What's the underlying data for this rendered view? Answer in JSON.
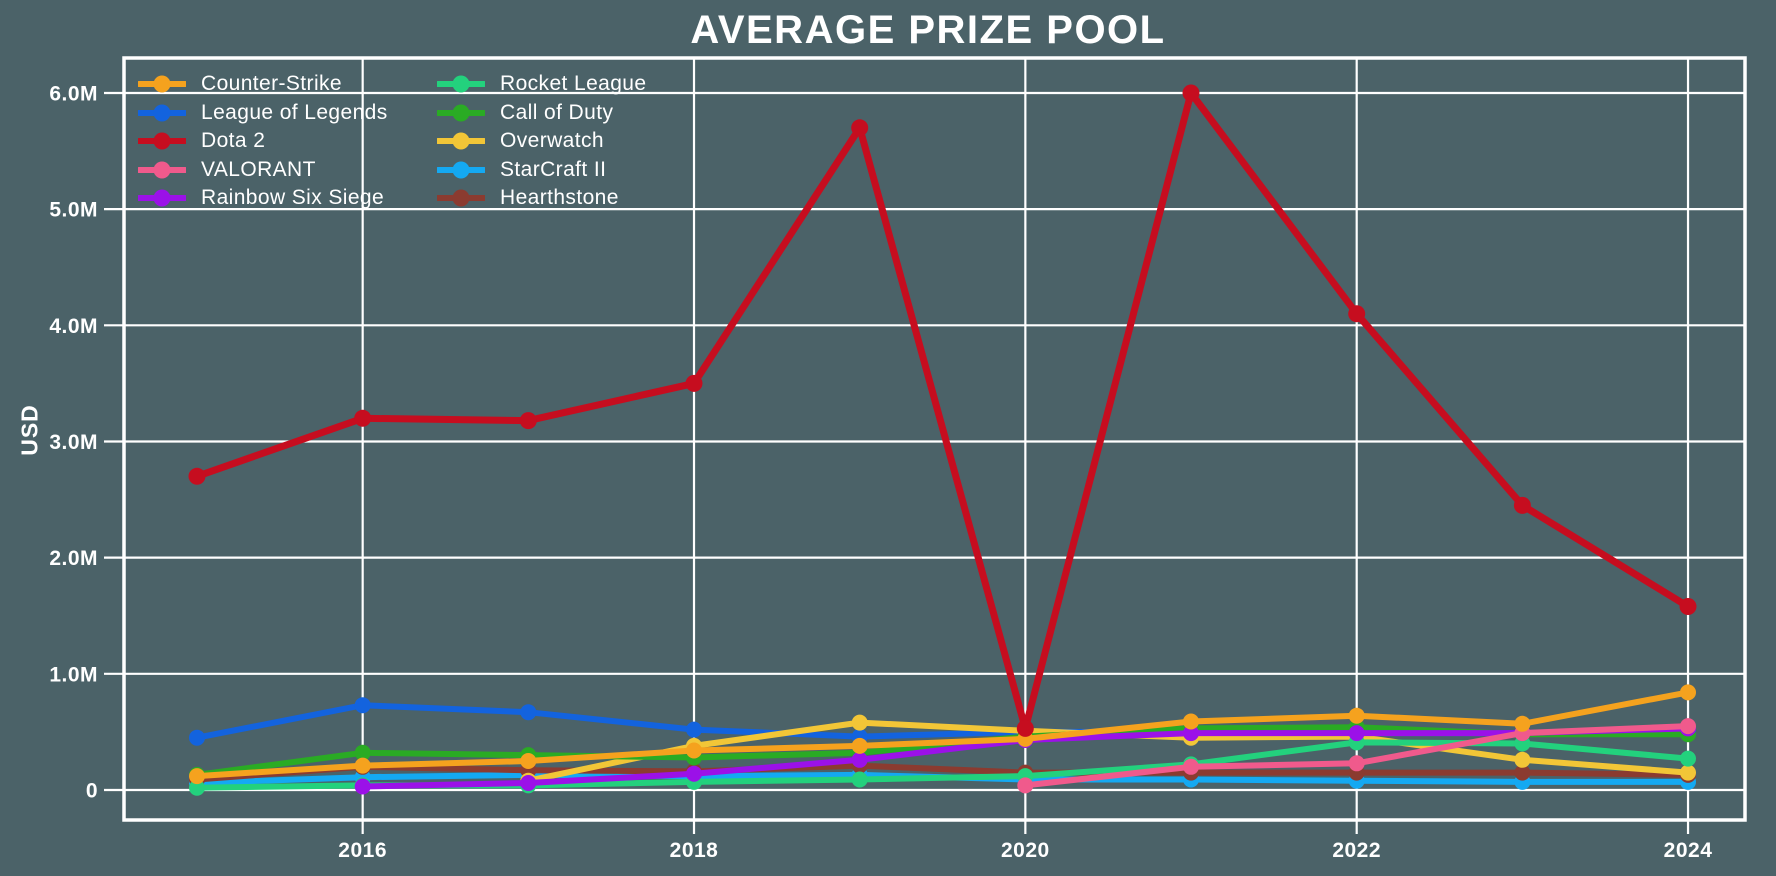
{
  "title": "AVERAGE PRIZE POOL",
  "theme": {
    "background": "#4b6268",
    "grid_color": "#ffffff",
    "text_color": "#ffffff"
  },
  "chart_data": {
    "type": "line",
    "title": "AVERAGE PRIZE POOL",
    "xlabel": "",
    "ylabel": "USD",
    "unit": "millions USD",
    "grid": true,
    "legend_position": "top-left",
    "x": [
      2015,
      2016,
      2017,
      2018,
      2019,
      2020,
      2021,
      2022,
      2023,
      2024
    ],
    "x_ticks": [
      2016,
      2018,
      2020,
      2022,
      2024
    ],
    "x_tick_labels": [
      "2016",
      "2018",
      "2020",
      "2022",
      "2024"
    ],
    "y_ticks": [
      0,
      1,
      2,
      3,
      4,
      5,
      6
    ],
    "y_tick_labels": [
      "0",
      "1.0M",
      "2.0M",
      "3.0M",
      "4.0M",
      "5.0M",
      "6.0M"
    ],
    "xlim": [
      2014.56,
      2024.34
    ],
    "ylim": [
      -0.26,
      6.3
    ],
    "series": [
      {
        "name": "Counter-Strike",
        "color": "#F5A21E",
        "values": [
          0.12,
          0.21,
          0.25,
          0.34,
          0.38,
          0.44,
          0.59,
          0.64,
          0.57,
          0.84
        ]
      },
      {
        "name": "League of Legends",
        "color": "#1363DE",
        "values": [
          0.45,
          0.73,
          0.67,
          0.52,
          0.46,
          0.5,
          0.5,
          0.49,
          0.49,
          0.5
        ]
      },
      {
        "name": "Dota 2",
        "color": "#C60D1F",
        "values": [
          2.7,
          3.2,
          3.18,
          3.5,
          5.7,
          0.53,
          6.0,
          4.1,
          2.45,
          1.58
        ]
      },
      {
        "name": "VALORANT",
        "color": "#F05A8C",
        "values": [
          null,
          null,
          null,
          null,
          null,
          0.04,
          0.2,
          0.23,
          0.49,
          0.55
        ]
      },
      {
        "name": "Rainbow Six Siege",
        "color": "#9B11E8",
        "values": [
          null,
          0.03,
          0.06,
          0.14,
          0.26,
          0.43,
          0.49,
          0.49,
          0.49,
          0.53
        ]
      },
      {
        "name": "Rocket League",
        "color": "#23D17D",
        "values": [
          0.02,
          0.04,
          0.04,
          0.07,
          0.09,
          0.12,
          0.22,
          0.41,
          0.4,
          0.27
        ]
      },
      {
        "name": "Call of Duty",
        "color": "#2AAB24",
        "values": [
          0.13,
          0.32,
          0.3,
          0.28,
          0.32,
          0.46,
          0.53,
          0.54,
          0.48,
          0.48
        ]
      },
      {
        "name": "Overwatch",
        "color": "#F2C637",
        "values": [
          null,
          null,
          0.08,
          0.38,
          0.58,
          0.51,
          0.45,
          0.46,
          0.26,
          0.15
        ]
      },
      {
        "name": "StarCraft II",
        "color": "#14A9F2",
        "values": [
          0.06,
          0.11,
          0.13,
          0.12,
          0.13,
          0.09,
          0.09,
          0.08,
          0.07,
          0.07
        ]
      },
      {
        "name": "Hearthstone",
        "color": "#8B3B30",
        "values": [
          0.09,
          0.2,
          0.17,
          0.16,
          0.21,
          0.15,
          0.15,
          0.15,
          0.15,
          0.13
        ]
      }
    ],
    "z_order": [
      "League of Legends",
      "StarCraft II",
      "Hearthstone",
      "Overwatch",
      "Call of Duty",
      "Rocket League",
      "Rainbow Six Siege",
      "VALORANT",
      "Counter-Strike",
      "Dota 2"
    ]
  }
}
